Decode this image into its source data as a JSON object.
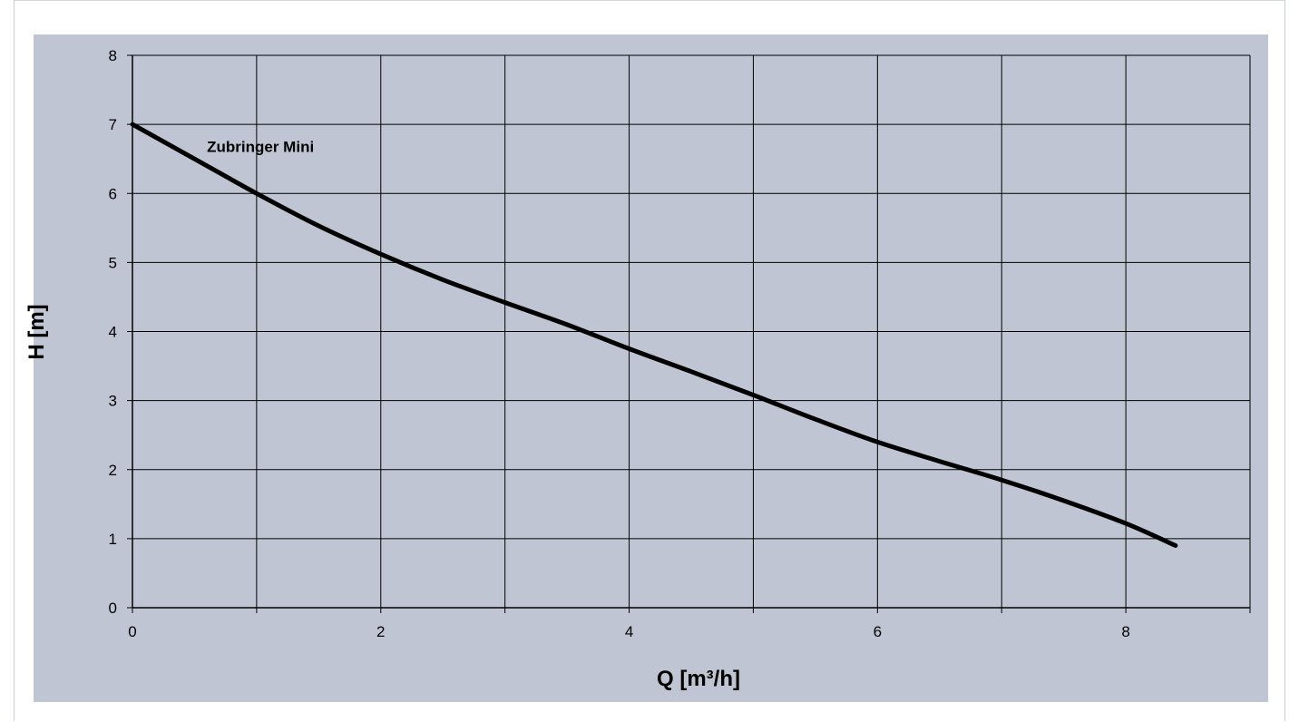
{
  "chart_data": {
    "type": "line",
    "title": "",
    "xlabel": "Q [m³/h]",
    "ylabel": "H [m]",
    "xlim": [
      0,
      9
    ],
    "ylim": [
      0,
      8
    ],
    "x_ticks": [
      0,
      2,
      4,
      6,
      8
    ],
    "x_grid": [
      0,
      1,
      2,
      3,
      4,
      5,
      6,
      7,
      8,
      9
    ],
    "y_ticks": [
      0,
      1,
      2,
      3,
      4,
      5,
      6,
      7,
      8
    ],
    "grid": true,
    "series": [
      {
        "name": "Zubringer Mini",
        "x": [
          0,
          0.5,
          1,
          1.5,
          2,
          2.5,
          3,
          3.5,
          4,
          4.5,
          5,
          5.5,
          6,
          6.5,
          7,
          7.5,
          8,
          8.4
        ],
        "y": [
          7.0,
          6.5,
          6.0,
          5.53,
          5.12,
          4.75,
          4.42,
          4.1,
          3.75,
          3.42,
          3.08,
          2.73,
          2.4,
          2.12,
          1.85,
          1.55,
          1.22,
          0.9
        ]
      }
    ],
    "annotations": [
      {
        "text": "Zubringer Mini",
        "x": 0.6,
        "y": 6.6
      }
    ],
    "colors": {
      "plot_background": "#c0c5d4",
      "grid": "#000000",
      "line": "#000000"
    }
  }
}
